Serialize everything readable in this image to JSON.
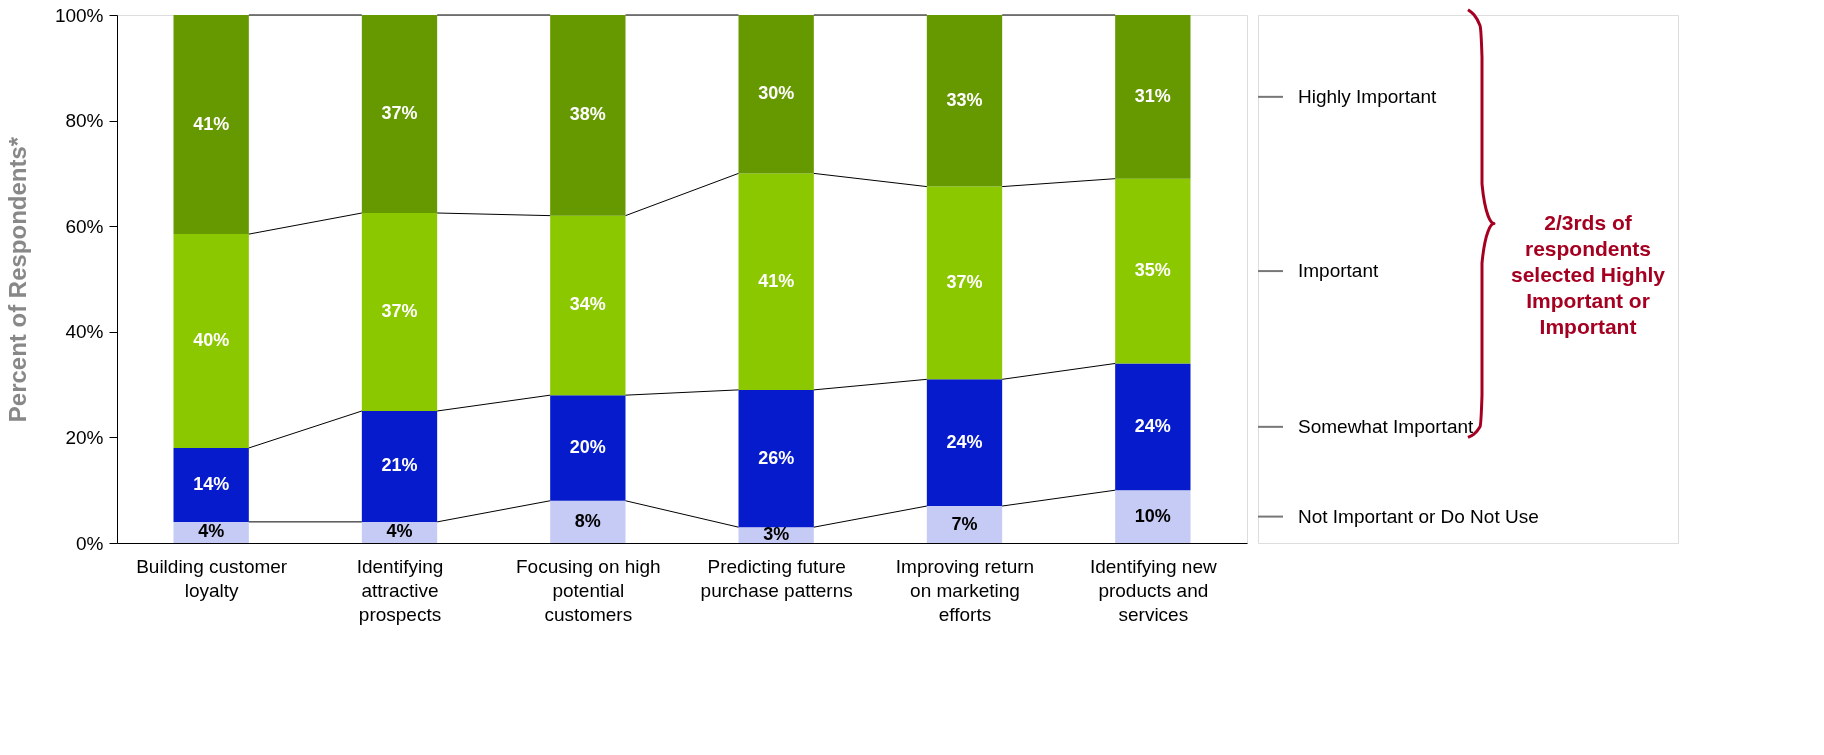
{
  "chart_data": {
    "type": "bar",
    "stacked": true,
    "ylabel": "Percent of Respondents*",
    "categories": [
      "Building customer loyalty",
      "Identifying attractive prospects",
      "Focusing on high potential customers",
      "Predicting future purchase patterns",
      "Improving return on marketing efforts",
      "Identifying new products and services"
    ],
    "series": [
      {
        "name": "Not Important or Do Not Use",
        "color": "#c6cbf5",
        "values": [
          4,
          4,
          8,
          3,
          7,
          10
        ],
        "value_labels": [
          "4%",
          "4%",
          "8%",
          "3%",
          "7%",
          "10%"
        ]
      },
      {
        "name": "Somewhat Important",
        "color": "#061ccc",
        "values": [
          14,
          21,
          20,
          26,
          24,
          24
        ],
        "value_labels": [
          "14%",
          "21%",
          "20%",
          "26%",
          "24%",
          "24%"
        ]
      },
      {
        "name": "Important",
        "color": "#8cc800",
        "values": [
          40.5,
          37.5,
          34,
          41,
          36.5,
          35
        ],
        "value_labels": [
          "40%",
          "37%",
          "34%",
          "41%",
          "37%",
          "35%"
        ]
      },
      {
        "name": "Highly Important",
        "color": "#669900",
        "values": [
          41.5,
          37.5,
          38,
          30,
          32.5,
          31
        ],
        "value_labels": [
          "41%",
          "37%",
          "38%",
          "30%",
          "33%",
          "31%"
        ]
      }
    ],
    "ylim": [
      0,
      100
    ],
    "yticks": [
      {
        "value": 0,
        "label": "0%"
      },
      {
        "value": 20,
        "label": "20%"
      },
      {
        "value": 40,
        "label": "40%"
      },
      {
        "value": 60,
        "label": "60%"
      },
      {
        "value": 80,
        "label": "80%"
      },
      {
        "value": 100,
        "label": "100%"
      }
    ],
    "grid": false,
    "legend": "right",
    "annotations": [
      "2/3rds of respondents selected Highly Important or Important"
    ]
  }
}
